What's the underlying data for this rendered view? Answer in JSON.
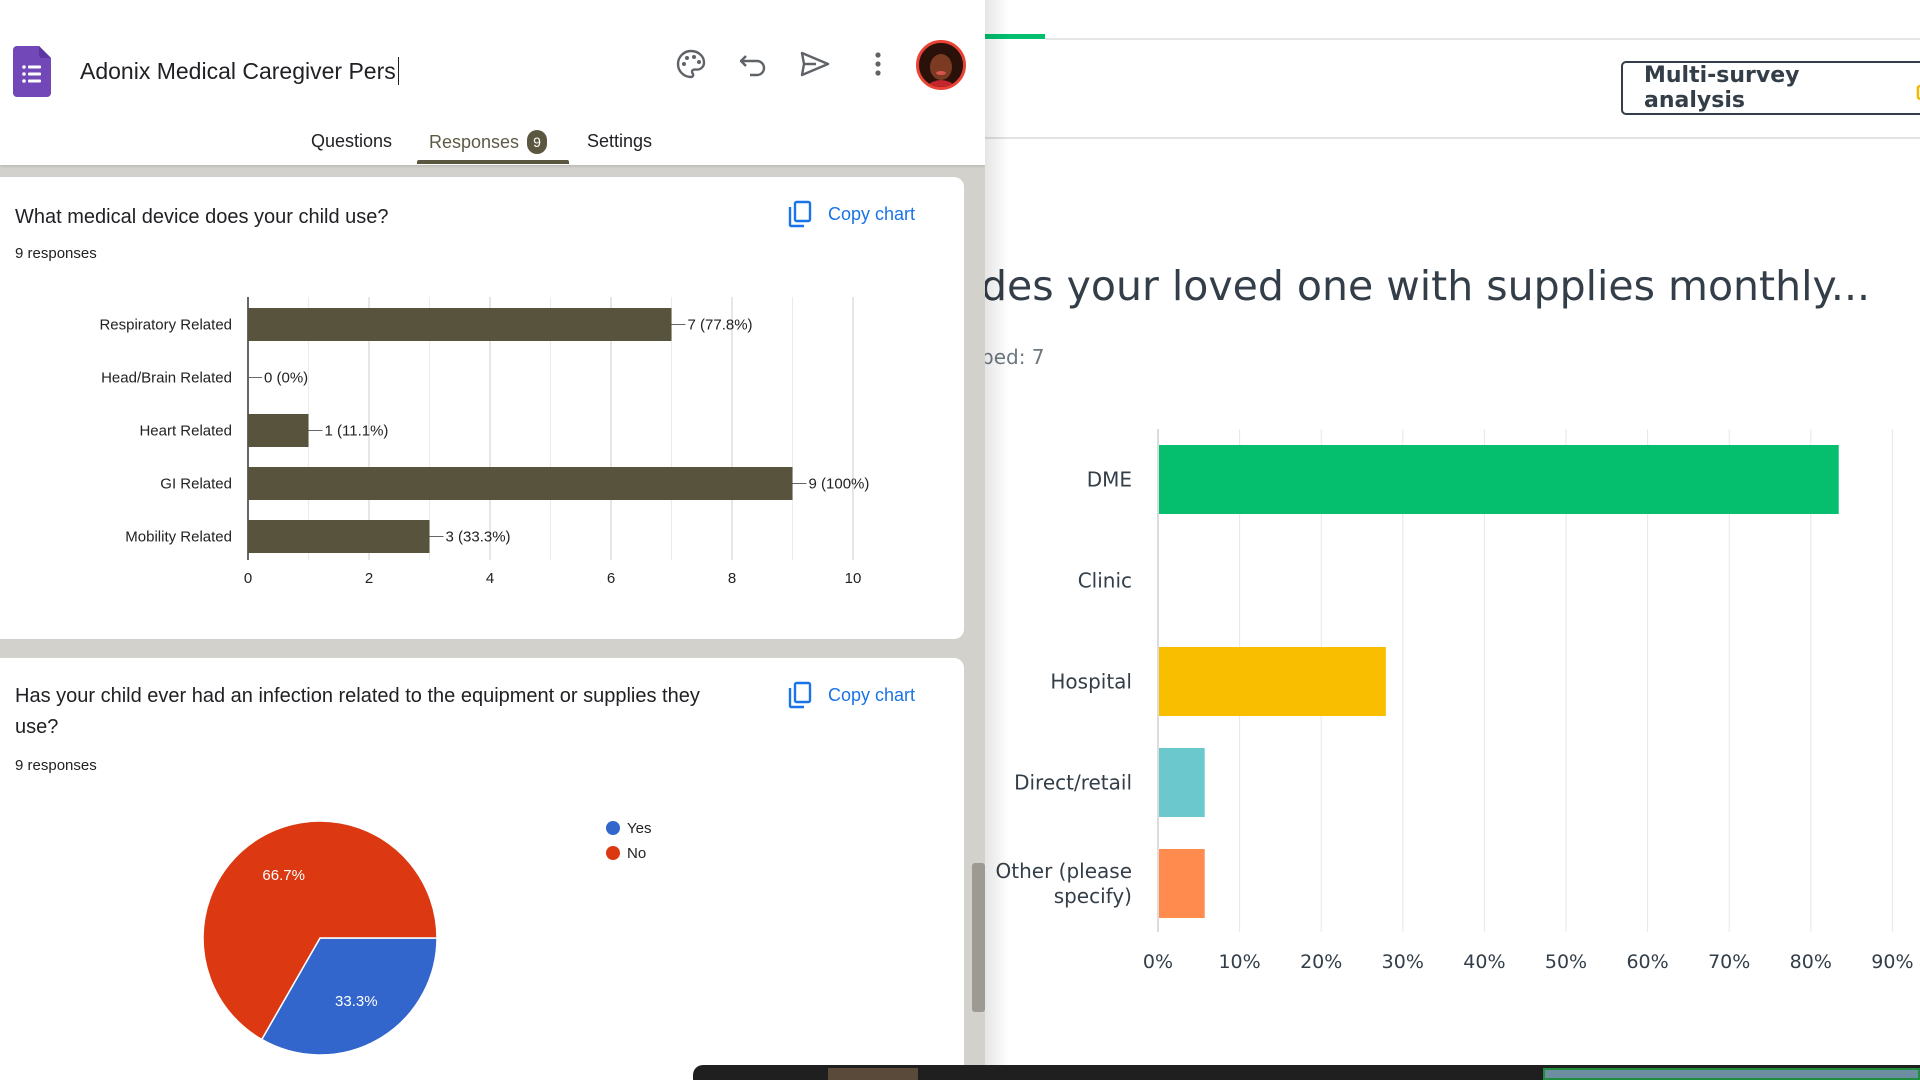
{
  "left": {
    "doc_title": "Adonix Medical Caregiver Pers",
    "tabs": [
      {
        "label": "Questions"
      },
      {
        "label": "Responses",
        "badge": "9"
      },
      {
        "label": "Settings"
      }
    ],
    "copy_chart_label": "Copy chart",
    "question1": {
      "title": "What medical device does your child use?",
      "count": "9 responses"
    },
    "question2": {
      "title_line1": "Has your child ever had an infection related to the equipment or supplies they",
      "title_line2": "use?",
      "count": "9 responses"
    }
  },
  "right": {
    "button_label": "Multi-survey analysis",
    "title": "des your loved one with supplies monthly...",
    "skipped": "ped: 7"
  },
  "chart_data": [
    {
      "type": "bar",
      "orientation": "horizontal",
      "categories": [
        "Respiratory Related",
        "Head/Brain Related",
        "Heart Related",
        "GI Related",
        "Mobility Related"
      ],
      "values": [
        7,
        0,
        1,
        9,
        3
      ],
      "data_labels": [
        "7 (77.8%)",
        "0 (0%)",
        "1 (11.1%)",
        "9 (100%)",
        "3 (33.3%)"
      ],
      "xlim": [
        0,
        10
      ],
      "x_ticks": [
        "0",
        "2",
        "4",
        "6",
        "8",
        "10"
      ],
      "color": "#57533d",
      "grid": true
    },
    {
      "type": "pie",
      "labels": [
        "Yes",
        "No"
      ],
      "values": [
        33.3,
        66.7
      ],
      "slice_labels": [
        "33.3%",
        "66.7%"
      ],
      "colors": [
        "#3366cc",
        "#dc3912"
      ],
      "legend": "right"
    },
    {
      "type": "bar",
      "orientation": "horizontal",
      "categories": [
        "DME",
        "Clinic",
        "Hospital",
        "Direct/retail",
        "Other (please specify)"
      ],
      "category_lines": [
        [
          "DME"
        ],
        [
          "Clinic"
        ],
        [
          "Hospital"
        ],
        [
          "Direct/retail"
        ],
        [
          "Other (please",
          "specify)"
        ]
      ],
      "values": [
        83.3,
        0,
        27.8,
        5.6,
        5.6
      ],
      "colors": [
        "#05bf6e",
        "#05bf6e",
        "#f9be00",
        "#6bc8cd",
        "#ff8b4f"
      ],
      "xlim": [
        0,
        90
      ],
      "x_ticks": [
        "0%",
        "10%",
        "20%",
        "30%",
        "40%",
        "50%",
        "60%",
        "70%",
        "80%",
        "90%"
      ],
      "grid": true
    }
  ]
}
